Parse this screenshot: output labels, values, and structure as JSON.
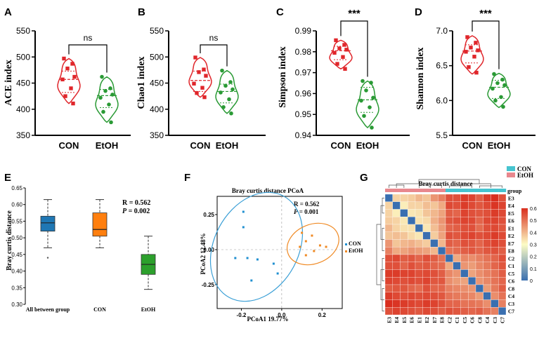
{
  "panels": {
    "A": {
      "letter": "A",
      "ylabel": "ACE index",
      "ylim": [
        350,
        550
      ],
      "yticks": [
        "350",
        "400",
        "450",
        "500",
        "550"
      ],
      "yticks_values": [
        350,
        400,
        450,
        500,
        550
      ],
      "categories": [
        "CON",
        "EtOH"
      ],
      "sig": "ns",
      "groups": [
        {
          "name": "CON",
          "points": [
            497,
            487,
            478,
            462,
            457,
            440,
            425,
            411
          ],
          "median": 457,
          "q1": 432,
          "q3": 473,
          "vmin": 411,
          "vmax": 497
        },
        {
          "name": "EtOH",
          "points": [
            462,
            440,
            435,
            428,
            422,
            409,
            395,
            375
          ],
          "median": 426,
          "q1": 403,
          "q3": 438,
          "vmin": 375,
          "vmax": 462
        }
      ]
    },
    "B": {
      "letter": "B",
      "ylabel": "Chao1 index",
      "ylim": [
        350,
        550
      ],
      "yticks": [
        "350",
        "400",
        "450",
        "500",
        "550"
      ],
      "yticks_values": [
        350,
        400,
        450,
        500,
        550
      ],
      "categories": [
        "CON",
        "EtOH"
      ],
      "sig": "ns",
      "groups": [
        {
          "name": "CON",
          "points": [
            499,
            476,
            471,
            464,
            449,
            441,
            431,
            423
          ],
          "median": 455,
          "q1": 434,
          "q3": 473,
          "vmin": 423,
          "vmax": 499
        },
        {
          "name": "EtOH",
          "points": [
            474,
            452,
            445,
            438,
            432,
            419,
            404,
            392
          ],
          "median": 434,
          "q1": 412,
          "q3": 448,
          "vmin": 392,
          "vmax": 474
        }
      ]
    },
    "C": {
      "letter": "C",
      "ylabel": "Simpson index",
      "ylim": [
        0.94,
        0.99
      ],
      "yticks": [
        "0.94",
        "0.95",
        "0.96",
        "0.97",
        "0.98",
        "0.99"
      ],
      "yticks_values": [
        0.94,
        0.95,
        0.96,
        0.97,
        0.98,
        0.99
      ],
      "categories": [
        "CON",
        "EtOH"
      ],
      "sig": "***",
      "groups": [
        {
          "name": "CON",
          "points": [
            0.9855,
            0.9833,
            0.9816,
            0.981,
            0.9795,
            0.9775,
            0.9742,
            0.9718
          ],
          "median": 0.9805,
          "q1": 0.9762,
          "q3": 0.9826,
          "vmin": 0.9718,
          "vmax": 0.9855
        },
        {
          "name": "EtOH",
          "points": [
            0.966,
            0.9652,
            0.9615,
            0.958,
            0.9566,
            0.9534,
            0.9493,
            0.9437
          ],
          "median": 0.957,
          "q1": 0.951,
          "q3": 0.963,
          "vmin": 0.9437,
          "vmax": 0.966
        }
      ]
    },
    "D": {
      "letter": "D",
      "ylabel": "Shannon index",
      "ylim": [
        5.5,
        7.0
      ],
      "yticks": [
        "5.5",
        "6.0",
        "6.5",
        "7.0"
      ],
      "yticks_values": [
        5.5,
        6.0,
        6.5,
        7.0
      ],
      "categories": [
        "CON",
        "EtOH"
      ],
      "sig": "***",
      "groups": [
        {
          "name": "CON",
          "points": [
            6.91,
            6.83,
            6.76,
            6.72,
            6.7,
            6.63,
            6.48,
            6.4
          ],
          "median": 6.71,
          "q1": 6.54,
          "q3": 6.8,
          "vmin": 6.38,
          "vmax": 6.93
        },
        {
          "name": "EtOH",
          "points": [
            6.38,
            6.3,
            6.25,
            6.22,
            6.17,
            6.05,
            6.0,
            5.91
          ],
          "median": 6.19,
          "q1": 6.03,
          "q3": 6.29,
          "vmin": 5.9,
          "vmax": 6.39
        }
      ]
    },
    "E": {
      "letter": "E",
      "ylabel": "Bray curtis distance",
      "ylim": [
        0.3,
        0.65
      ],
      "yticks": [
        "0.30",
        "0.35",
        "0.40",
        "0.45",
        "0.50",
        "0.55",
        "0.60",
        "0.65"
      ],
      "yticks_values": [
        0.3,
        0.35,
        0.4,
        0.45,
        0.5,
        0.55,
        0.6,
        0.65
      ],
      "stat_r": "R = 0.562",
      "stat_p_label": "P",
      "stat_p_value": " = 0.002",
      "boxes": [
        {
          "name": "All between group",
          "color": "#1f77b4",
          "whisker_low": 0.47,
          "q1": 0.52,
          "median": 0.545,
          "q3": 0.565,
          "whisker_high": 0.615,
          "outliers": [
            0.44
          ]
        },
        {
          "name": "CON",
          "color": "#ff7f0e",
          "whisker_low": 0.47,
          "q1": 0.505,
          "median": 0.525,
          "q3": 0.575,
          "whisker_high": 0.615,
          "outliers": []
        },
        {
          "name": "EtOH",
          "color": "#2ca02c",
          "whisker_low": 0.345,
          "q1": 0.39,
          "median": 0.42,
          "q3": 0.45,
          "whisker_high": 0.505,
          "outliers": []
        }
      ]
    },
    "F": {
      "letter": "F",
      "title": "Bray curtis distance PCoA",
      "xlabel": "PCoA1 19.77%",
      "ylabel": "PCoA2 12.48%",
      "xlim": [
        -0.32,
        0.3
      ],
      "ylim": [
        -0.42,
        0.38
      ],
      "xticks": [
        "-0.2",
        "0.0",
        "0.2"
      ],
      "xticks_values": [
        -0.2,
        0.0,
        0.2
      ],
      "yticks": [
        "-0.25",
        "0.00",
        "0.25"
      ],
      "yticks_values": [
        -0.25,
        0.0,
        0.25
      ],
      "stat_r": "R = 0.562",
      "stat_p_label": "P",
      "stat_p_value": " = 0.001",
      "legend": [
        "CON",
        "EtOH"
      ],
      "series": [
        {
          "name": "CON",
          "color": "#1f8fd0",
          "points": [
            [
              -0.19,
              0.27
            ],
            [
              -0.19,
              0.16
            ],
            [
              -0.23,
              -0.06
            ],
            [
              -0.17,
              -0.06
            ],
            [
              -0.12,
              -0.07
            ],
            [
              -0.04,
              -0.1
            ],
            [
              -0.02,
              -0.17
            ],
            [
              -0.15,
              -0.22
            ]
          ]
        },
        {
          "name": "EtOH",
          "color": "#f08a24",
          "points": [
            [
              0.1,
              0.12
            ],
            [
              0.15,
              0.1
            ],
            [
              0.12,
              0.06
            ],
            [
              0.09,
              0.02
            ],
            [
              0.19,
              0.03
            ],
            [
              0.22,
              0.02
            ],
            [
              0.16,
              -0.01
            ],
            [
              0.12,
              -0.04
            ]
          ]
        }
      ]
    },
    "G": {
      "letter": "G",
      "title": "Bray curtis distance",
      "legend": [
        "CON",
        "EtOH"
      ],
      "legend_colors": [
        "#46c4cf",
        "#e8888e"
      ],
      "group_label": "group",
      "row_labels": [
        "E3",
        "E4",
        "E5",
        "E6",
        "E1",
        "E2",
        "E7",
        "E8",
        "C2",
        "C1",
        "C5",
        "C6",
        "C8",
        "C4",
        "C3",
        "C7"
      ],
      "col_labels": [
        "E3",
        "E4",
        "E5",
        "E6",
        "E1",
        "E2",
        "E7",
        "E8",
        "C2",
        "C1",
        "C5",
        "C6",
        "C8",
        "C4",
        "C3",
        "C7"
      ],
      "colorbar_ticks": [
        "0.6",
        "0.5",
        "0.4",
        "0.3",
        "0.2",
        "0.1",
        "0"
      ],
      "colorbar_values": [
        0.6,
        0.5,
        0.4,
        0.3,
        0.2,
        0.1,
        0.0
      ],
      "matrix": [
        [
          0.0,
          0.36,
          0.36,
          0.37,
          0.4,
          0.38,
          0.45,
          0.48,
          0.55,
          0.55,
          0.58,
          0.57,
          0.53,
          0.58,
          0.6,
          0.55
        ],
        [
          0.36,
          0.0,
          0.32,
          0.36,
          0.36,
          0.39,
          0.38,
          0.42,
          0.56,
          0.55,
          0.58,
          0.56,
          0.54,
          0.56,
          0.59,
          0.57
        ],
        [
          0.36,
          0.32,
          0.0,
          0.33,
          0.34,
          0.38,
          0.4,
          0.43,
          0.53,
          0.52,
          0.57,
          0.55,
          0.54,
          0.55,
          0.58,
          0.56
        ],
        [
          0.37,
          0.36,
          0.33,
          0.0,
          0.34,
          0.35,
          0.41,
          0.45,
          0.54,
          0.55,
          0.57,
          0.56,
          0.52,
          0.56,
          0.57,
          0.55
        ],
        [
          0.4,
          0.36,
          0.34,
          0.34,
          0.0,
          0.33,
          0.39,
          0.44,
          0.52,
          0.53,
          0.55,
          0.55,
          0.51,
          0.55,
          0.56,
          0.54
        ],
        [
          0.38,
          0.39,
          0.38,
          0.35,
          0.33,
          0.0,
          0.37,
          0.43,
          0.55,
          0.54,
          0.56,
          0.57,
          0.55,
          0.56,
          0.58,
          0.56
        ],
        [
          0.45,
          0.38,
          0.4,
          0.41,
          0.39,
          0.37,
          0.0,
          0.4,
          0.53,
          0.52,
          0.55,
          0.54,
          0.52,
          0.55,
          0.57,
          0.55
        ],
        [
          0.48,
          0.42,
          0.43,
          0.45,
          0.44,
          0.43,
          0.4,
          0.0,
          0.5,
          0.51,
          0.53,
          0.54,
          0.52,
          0.54,
          0.55,
          0.53
        ],
        [
          0.55,
          0.56,
          0.53,
          0.54,
          0.52,
          0.55,
          0.53,
          0.5,
          0.0,
          0.42,
          0.47,
          0.46,
          0.48,
          0.5,
          0.52,
          0.55
        ],
        [
          0.55,
          0.55,
          0.52,
          0.55,
          0.53,
          0.54,
          0.52,
          0.51,
          0.42,
          0.0,
          0.45,
          0.44,
          0.47,
          0.49,
          0.52,
          0.54
        ],
        [
          0.58,
          0.58,
          0.57,
          0.57,
          0.55,
          0.56,
          0.55,
          0.53,
          0.47,
          0.45,
          0.0,
          0.43,
          0.46,
          0.48,
          0.5,
          0.53
        ],
        [
          0.57,
          0.56,
          0.55,
          0.56,
          0.55,
          0.57,
          0.54,
          0.54,
          0.46,
          0.44,
          0.43,
          0.0,
          0.45,
          0.47,
          0.5,
          0.52
        ],
        [
          0.53,
          0.54,
          0.54,
          0.52,
          0.51,
          0.55,
          0.52,
          0.52,
          0.48,
          0.47,
          0.46,
          0.45,
          0.0,
          0.44,
          0.49,
          0.53
        ],
        [
          0.58,
          0.56,
          0.55,
          0.56,
          0.55,
          0.56,
          0.55,
          0.54,
          0.5,
          0.49,
          0.48,
          0.47,
          0.44,
          0.0,
          0.46,
          0.5
        ],
        [
          0.6,
          0.59,
          0.58,
          0.57,
          0.56,
          0.58,
          0.57,
          0.55,
          0.52,
          0.52,
          0.5,
          0.5,
          0.49,
          0.46,
          0.0,
          0.48
        ],
        [
          0.55,
          0.57,
          0.56,
          0.55,
          0.54,
          0.56,
          0.55,
          0.53,
          0.55,
          0.54,
          0.53,
          0.52,
          0.53,
          0.5,
          0.48,
          0.0
        ]
      ]
    }
  },
  "chart_data": [
    {
      "type": "violin",
      "panel": "A",
      "title": "",
      "ylabel": "ACE index",
      "categories": [
        "CON",
        "EtOH"
      ],
      "ylim": [
        350,
        550
      ],
      "annotation": "ns"
    },
    {
      "type": "violin",
      "panel": "B",
      "title": "",
      "ylabel": "Chao1 index",
      "categories": [
        "CON",
        "EtOH"
      ],
      "ylim": [
        350,
        550
      ],
      "annotation": "ns"
    },
    {
      "type": "violin",
      "panel": "C",
      "title": "",
      "ylabel": "Simpson index",
      "categories": [
        "CON",
        "EtOH"
      ],
      "ylim": [
        0.94,
        0.99
      ],
      "annotation": "***"
    },
    {
      "type": "violin",
      "panel": "D",
      "title": "",
      "ylabel": "Shannon index",
      "categories": [
        "CON",
        "EtOH"
      ],
      "ylim": [
        5.5,
        7.0
      ],
      "annotation": "***"
    },
    {
      "type": "box",
      "panel": "E",
      "ylabel": "Bray curtis distance",
      "categories": [
        "All between group",
        "CON",
        "EtOH"
      ],
      "ylim": [
        0.3,
        0.65
      ],
      "annotation": "R = 0.562, P = 0.002"
    },
    {
      "type": "scatter",
      "panel": "F",
      "title": "Bray curtis distance PCoA",
      "xlabel": "PCoA1 19.77%",
      "ylabel": "PCoA2 12.48%",
      "series_names": [
        "CON",
        "EtOH"
      ],
      "annotation": "R = 0.562, P = 0.001"
    },
    {
      "type": "heatmap",
      "panel": "G",
      "title": "Bray curtis distance",
      "range": [
        0,
        0.6
      ]
    }
  ]
}
